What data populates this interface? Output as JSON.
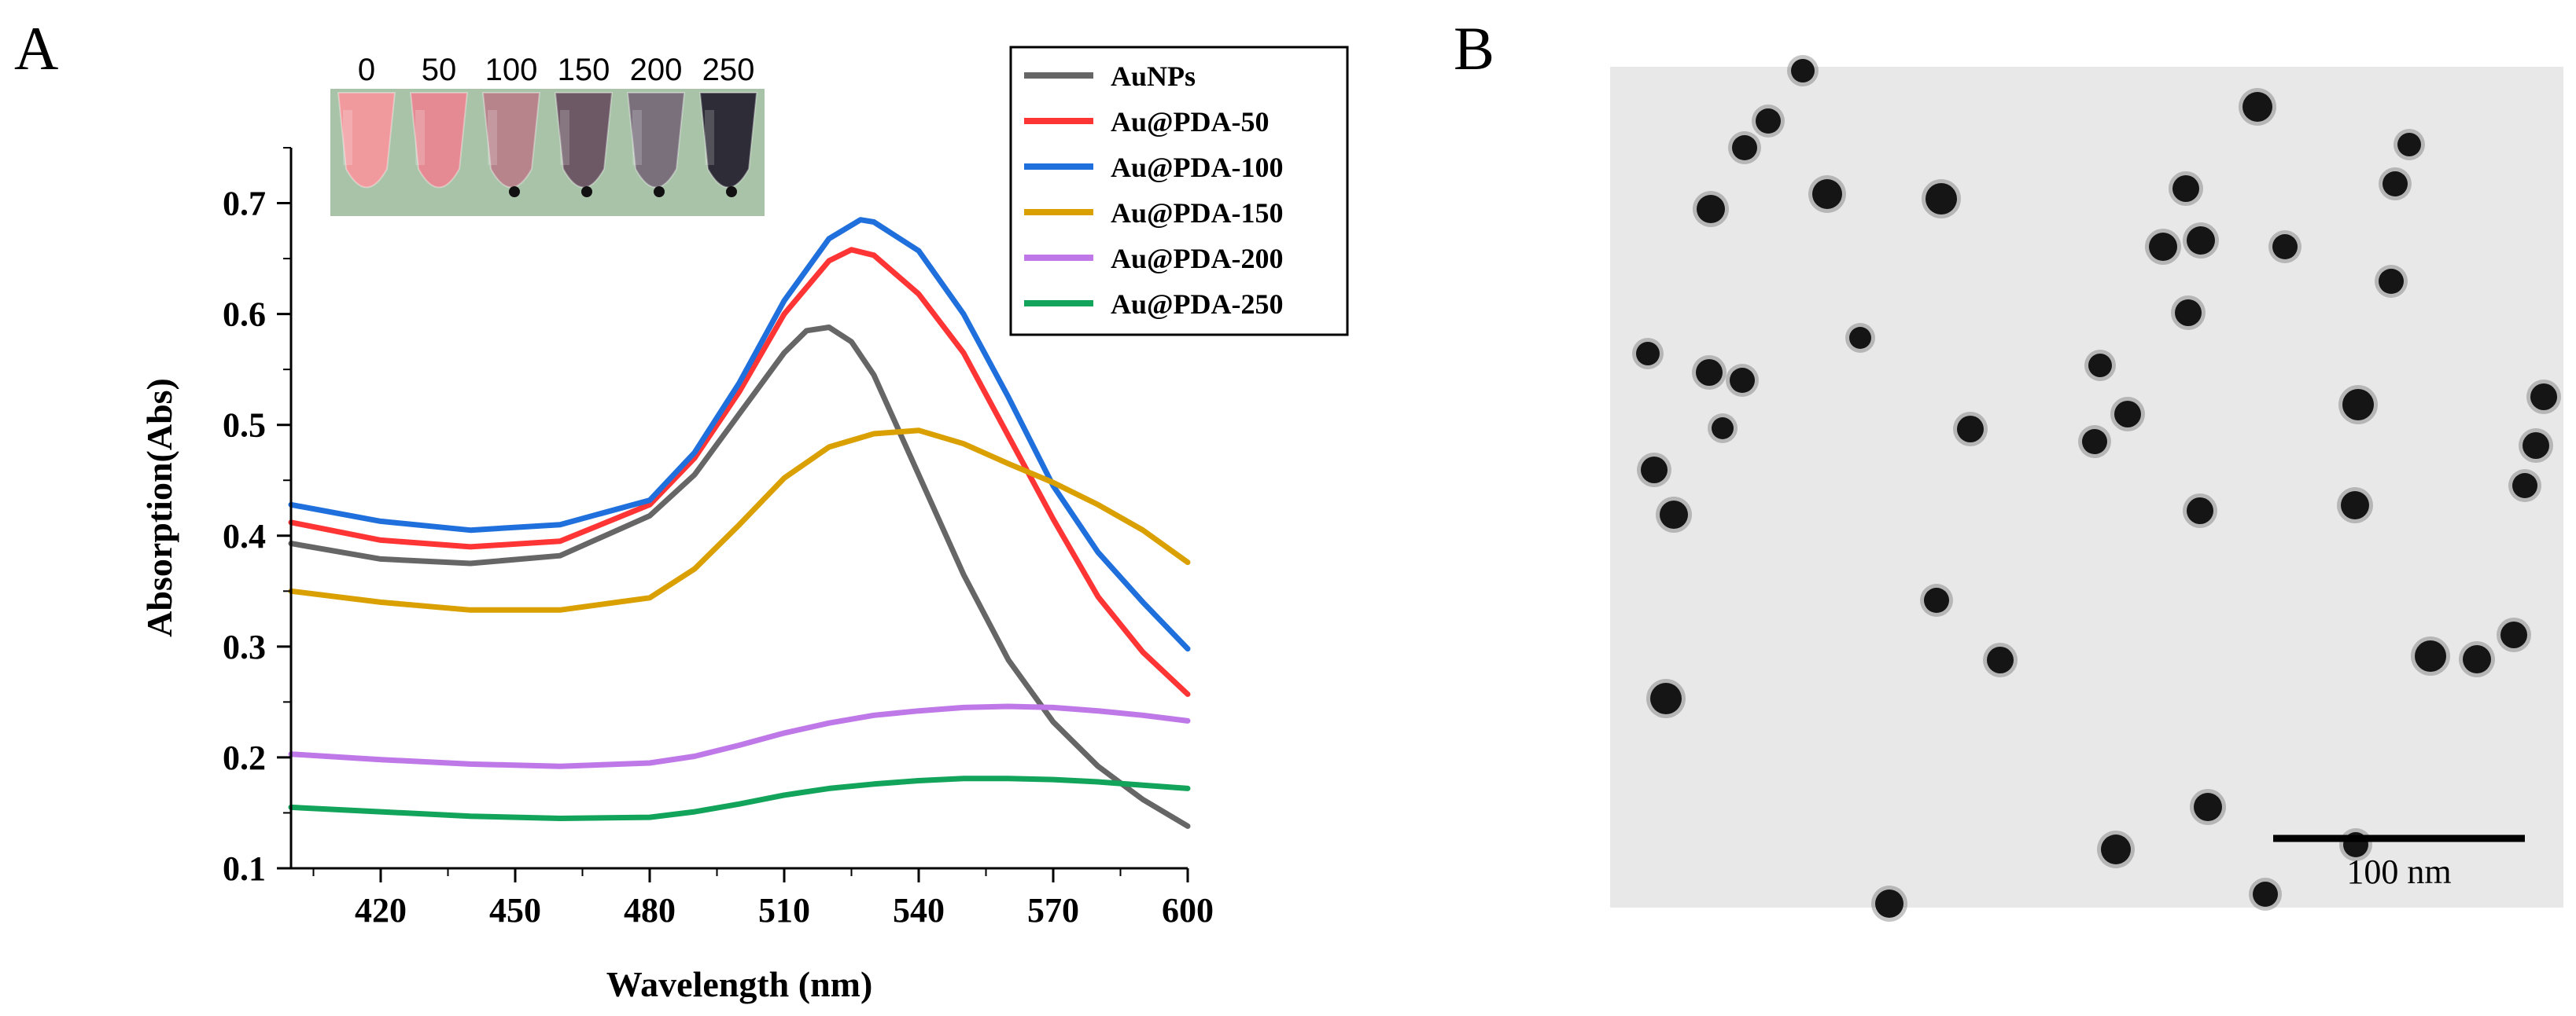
{
  "panels": {
    "a_label": "A",
    "b_label": "B"
  },
  "inset": {
    "concentrations": [
      "0",
      "50",
      "100",
      "150",
      "200",
      "250"
    ],
    "tube_colors": [
      "#f19a9e",
      "#e58a93",
      "#b7848c",
      "#6d5965",
      "#79707c",
      "#2e2c36"
    ],
    "background_color": "#a9c3a9"
  },
  "tem": {
    "scale_bar_label": "100 nm",
    "background_color": "#e8e8e8",
    "particle_color": "#151515"
  },
  "chart_data": {
    "type": "line",
    "title": "",
    "xlabel": "Wavelength (nm)",
    "ylabel": "Absorption(Abs)",
    "xlim": [
      400,
      600
    ],
    "ylim": [
      0.1,
      0.75
    ],
    "xticks": [
      420,
      450,
      480,
      510,
      540,
      570,
      600
    ],
    "yticks": [
      0.1,
      0.2,
      0.3,
      0.4,
      0.5,
      0.6,
      0.7
    ],
    "legend_position": "top-right",
    "series": [
      {
        "name": "AuNPs",
        "color": "#666666",
        "x": [
          400,
          420,
          440,
          460,
          480,
          490,
          500,
          510,
          515,
          520,
          525,
          530,
          540,
          550,
          560,
          570,
          580,
          590,
          600
        ],
        "y": [
          0.393,
          0.379,
          0.375,
          0.382,
          0.418,
          0.455,
          0.51,
          0.565,
          0.585,
          0.588,
          0.575,
          0.545,
          0.455,
          0.365,
          0.288,
          0.232,
          0.192,
          0.162,
          0.138
        ]
      },
      {
        "name": "Au@PDA-50",
        "color": "#ff3535",
        "x": [
          400,
          420,
          440,
          460,
          480,
          490,
          500,
          510,
          520,
          525,
          530,
          540,
          550,
          560,
          570,
          580,
          590,
          600
        ],
        "y": [
          0.412,
          0.396,
          0.39,
          0.395,
          0.428,
          0.47,
          0.53,
          0.6,
          0.648,
          0.658,
          0.653,
          0.618,
          0.565,
          0.49,
          0.415,
          0.345,
          0.295,
          0.257
        ]
      },
      {
        "name": "Au@PDA-100",
        "color": "#1f6fdc",
        "x": [
          400,
          420,
          440,
          460,
          480,
          490,
          500,
          510,
          520,
          527,
          530,
          540,
          550,
          560,
          570,
          580,
          590,
          600
        ],
        "y": [
          0.428,
          0.413,
          0.405,
          0.41,
          0.432,
          0.475,
          0.538,
          0.612,
          0.668,
          0.685,
          0.683,
          0.657,
          0.6,
          0.525,
          0.445,
          0.385,
          0.34,
          0.298
        ]
      },
      {
        "name": "Au@PDA-150",
        "color": "#d9a000",
        "x": [
          400,
          420,
          440,
          460,
          480,
          490,
          500,
          510,
          520,
          530,
          540,
          550,
          560,
          570,
          580,
          590,
          600
        ],
        "y": [
          0.35,
          0.34,
          0.333,
          0.333,
          0.344,
          0.37,
          0.41,
          0.452,
          0.48,
          0.492,
          0.495,
          0.483,
          0.465,
          0.448,
          0.428,
          0.405,
          0.376
        ]
      },
      {
        "name": "Au@PDA-200",
        "color": "#bf78e8",
        "x": [
          400,
          420,
          440,
          460,
          480,
          490,
          500,
          510,
          520,
          530,
          540,
          550,
          560,
          570,
          580,
          590,
          600
        ],
        "y": [
          0.203,
          0.198,
          0.194,
          0.192,
          0.195,
          0.201,
          0.211,
          0.222,
          0.231,
          0.238,
          0.242,
          0.245,
          0.246,
          0.245,
          0.242,
          0.238,
          0.233
        ]
      },
      {
        "name": "Au@PDA-250",
        "color": "#12a45a",
        "x": [
          400,
          420,
          440,
          460,
          480,
          490,
          500,
          510,
          520,
          530,
          540,
          550,
          560,
          570,
          580,
          590,
          600
        ],
        "y": [
          0.155,
          0.151,
          0.147,
          0.145,
          0.146,
          0.151,
          0.158,
          0.166,
          0.172,
          0.176,
          0.179,
          0.181,
          0.181,
          0.18,
          0.178,
          0.175,
          0.172
        ]
      }
    ]
  }
}
